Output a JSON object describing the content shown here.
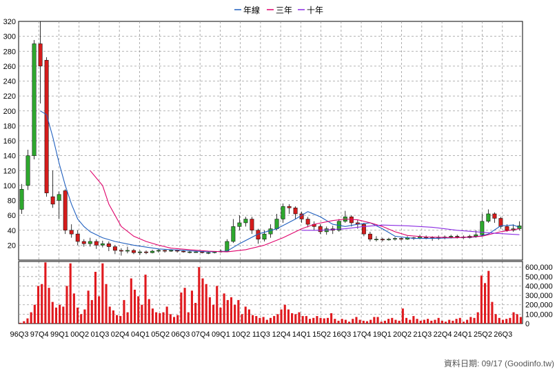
{
  "legend": [
    {
      "label": "年線",
      "color": "#1f5fbf"
    },
    {
      "label": "三年",
      "color": "#e0006a"
    },
    {
      "label": "十年",
      "color": "#8a2be2"
    }
  ],
  "source": "資料日期: 09/17  (Goodinfo.tw)",
  "colors": {
    "up": "#2ea82e",
    "down": "#d41c1c",
    "volume": "#e0191e",
    "grid": "#9a9a9a",
    "frame": "#000000"
  },
  "chart_data": [
    {
      "type": "candlestick",
      "title": "",
      "ylim": [
        0,
        320
      ],
      "yticks": [
        20,
        40,
        60,
        80,
        100,
        120,
        140,
        160,
        180,
        200,
        220,
        240,
        260,
        280,
        300,
        320
      ],
      "grid": true,
      "legend_position": "top-center",
      "x": [
        "96Q3",
        "97Q4",
        "99Q1",
        "00Q2",
        "01Q3",
        "02Q4",
        "04Q1",
        "05Q2",
        "06Q3",
        "07Q4",
        "09Q1",
        "10Q2",
        "11Q3",
        "12Q4",
        "14Q1",
        "15Q2",
        "16Q3",
        "17Q4",
        "19Q1",
        "20Q2",
        "21Q3",
        "22Q4",
        "24Q1",
        "25Q2",
        "26Q3"
      ],
      "candles": [
        [
          68,
          95,
          102,
          62
        ],
        [
          100,
          140,
          148,
          94
        ],
        [
          140,
          290,
          295,
          135
        ],
        [
          290,
          260,
          320,
          210
        ],
        [
          268,
          90,
          272,
          85
        ],
        [
          85,
          75,
          120,
          70
        ],
        [
          80,
          88,
          92,
          55
        ],
        [
          93,
          40,
          95,
          35
        ],
        [
          40,
          35,
          48,
          30
        ],
        [
          35,
          25,
          40,
          20
        ],
        [
          25,
          22,
          28,
          18
        ],
        [
          22,
          25,
          30,
          18
        ],
        [
          25,
          20,
          28,
          15
        ],
        [
          20,
          22,
          26,
          17
        ],
        [
          22,
          18,
          25,
          12
        ],
        [
          18,
          13,
          20,
          8
        ],
        [
          13,
          12,
          16,
          6
        ],
        [
          12,
          13,
          18,
          9
        ],
        [
          13,
          10,
          15,
          8
        ],
        [
          10,
          11,
          13,
          7
        ],
        [
          11,
          10,
          13,
          8
        ],
        [
          10,
          12,
          14,
          9
        ],
        [
          12,
          13,
          15,
          10
        ],
        [
          13,
          12,
          14,
          10
        ],
        [
          12,
          13,
          14,
          11
        ],
        [
          13,
          12,
          14,
          10
        ],
        [
          12,
          11,
          13,
          10
        ],
        [
          11,
          11,
          12,
          9
        ],
        [
          11,
          11,
          12,
          10
        ],
        [
          11,
          10,
          12,
          9
        ],
        [
          10,
          10,
          11,
          8
        ],
        [
          10,
          11,
          12,
          9
        ],
        [
          11,
          12,
          14,
          10
        ],
        [
          12,
          25,
          28,
          11
        ],
        [
          25,
          45,
          55,
          23
        ],
        [
          45,
          50,
          60,
          40
        ],
        [
          50,
          55,
          58,
          45
        ],
        [
          55,
          40,
          58,
          35
        ],
        [
          40,
          28,
          42,
          22
        ],
        [
          28,
          35,
          40,
          25
        ],
        [
          35,
          42,
          48,
          30
        ],
        [
          42,
          55,
          62,
          40
        ],
        [
          55,
          72,
          76,
          50
        ],
        [
          72,
          70,
          75,
          62
        ],
        [
          70,
          62,
          72,
          55
        ],
        [
          62,
          55,
          65,
          50
        ],
        [
          55,
          48,
          58,
          44
        ],
        [
          48,
          45,
          52,
          40
        ],
        [
          45,
          38,
          48,
          35
        ],
        [
          38,
          42,
          45,
          34
        ],
        [
          42,
          40,
          46,
          35
        ],
        [
          40,
          52,
          55,
          38
        ],
        [
          52,
          58,
          66,
          50
        ],
        [
          58,
          50,
          60,
          45
        ],
        [
          50,
          48,
          54,
          42
        ],
        [
          48,
          35,
          50,
          32
        ],
        [
          35,
          28,
          38,
          25
        ],
        [
          28,
          28,
          32,
          25
        ],
        [
          28,
          27,
          30,
          25
        ],
        [
          27,
          28,
          30,
          26
        ],
        [
          28,
          29,
          31,
          26
        ],
        [
          29,
          28,
          30,
          26
        ],
        [
          28,
          30,
          32,
          27
        ],
        [
          30,
          29,
          31,
          27
        ],
        [
          29,
          31,
          34,
          28
        ],
        [
          31,
          30,
          33,
          28
        ],
        [
          30,
          29,
          32,
          26
        ],
        [
          29,
          30,
          33,
          27
        ],
        [
          30,
          31,
          33,
          28
        ],
        [
          31,
          32,
          34,
          29
        ],
        [
          32,
          31,
          34,
          29
        ],
        [
          31,
          30,
          33,
          28
        ],
        [
          30,
          32,
          34,
          29
        ],
        [
          32,
          34,
          40,
          30
        ],
        [
          34,
          52,
          62,
          33
        ],
        [
          52,
          62,
          68,
          50
        ],
        [
          62,
          56,
          64,
          50
        ],
        [
          56,
          45,
          58,
          42
        ],
        [
          45,
          40,
          48,
          38
        ],
        [
          40,
          42,
          48,
          38
        ],
        [
          42,
          46,
          52,
          40
        ]
      ],
      "series": [
        {
          "name": "年線",
          "color": "#1f5fbf",
          "points": [
            [
              3,
              200
            ],
            [
              4,
              195
            ],
            [
              5,
              165
            ],
            [
              6,
              130
            ],
            [
              7,
              100
            ],
            [
              8,
              75
            ],
            [
              9,
              55
            ],
            [
              10,
              45
            ],
            [
              11,
              38
            ],
            [
              13,
              30
            ],
            [
              15,
              25
            ],
            [
              18,
              20
            ],
            [
              22,
              15
            ],
            [
              26,
              13
            ],
            [
              30,
              11
            ],
            [
              33,
              12
            ],
            [
              35,
              22
            ],
            [
              38,
              35
            ],
            [
              41,
              42
            ],
            [
              44,
              55
            ],
            [
              46,
              65
            ],
            [
              48,
              58
            ],
            [
              50,
              48
            ],
            [
              52,
              45
            ],
            [
              54,
              48
            ],
            [
              56,
              50
            ],
            [
              58,
              42
            ],
            [
              60,
              32
            ],
            [
              63,
              29
            ],
            [
              66,
              29
            ],
            [
              70,
              30
            ],
            [
              73,
              31
            ],
            [
              75,
              35
            ],
            [
              77,
              46
            ],
            [
              79,
              47
            ],
            [
              80,
              44
            ]
          ]
        },
        {
          "name": "三年",
          "color": "#e0006a",
          "points": [
            [
              11,
              120
            ],
            [
              13,
              100
            ],
            [
              14,
              75
            ],
            [
              16,
              45
            ],
            [
              18,
              32
            ],
            [
              20,
              25
            ],
            [
              22,
              20
            ],
            [
              24,
              16
            ],
            [
              27,
              14
            ],
            [
              30,
              12
            ],
            [
              33,
              11
            ],
            [
              36,
              14
            ],
            [
              39,
              20
            ],
            [
              42,
              30
            ],
            [
              45,
              42
            ],
            [
              47,
              48
            ],
            [
              50,
              53
            ],
            [
              52,
              55
            ],
            [
              54,
              54
            ],
            [
              56,
              50
            ],
            [
              58,
              45
            ],
            [
              60,
              38
            ],
            [
              62,
              33
            ],
            [
              65,
              31
            ],
            [
              70,
              30
            ],
            [
              74,
              32
            ],
            [
              77,
              38
            ],
            [
              80,
              42
            ]
          ]
        },
        {
          "name": "十年",
          "color": "#8a2be2",
          "points": [
            [
              45,
              40
            ],
            [
              48,
              40
            ],
            [
              52,
              42
            ],
            [
              55,
              45
            ],
            [
              58,
              47
            ],
            [
              62,
              46
            ],
            [
              66,
              44
            ],
            [
              70,
              40
            ],
            [
              73,
              38
            ],
            [
              76,
              36
            ],
            [
              80,
              34
            ]
          ]
        }
      ]
    },
    {
      "type": "bar",
      "title": "",
      "ylim": [
        0,
        660000
      ],
      "yticks": [
        0,
        100000,
        200000,
        300000,
        400000,
        500000,
        600000
      ],
      "ytick_labels": [
        "0",
        "100,000",
        "200,000",
        "300,000",
        "400,000",
        "500,000",
        "600,000"
      ],
      "values": [
        8000,
        25000,
        55000,
        120000,
        200000,
        400000,
        420000,
        650000,
        380000,
        230000,
        170000,
        200000,
        180000,
        400000,
        640000,
        320000,
        170000,
        100000,
        150000,
        350000,
        250000,
        550000,
        290000,
        640000,
        420000,
        180000,
        140000,
        90000,
        80000,
        250000,
        120000,
        480000,
        360000,
        290000,
        200000,
        520000,
        260000,
        160000,
        120000,
        110000,
        120000,
        180000,
        100000,
        70000,
        90000,
        330000,
        380000,
        120000,
        350000,
        220000,
        600000,
        480000,
        420000,
        280000,
        200000,
        400000,
        170000,
        320000,
        250000,
        280000,
        200000,
        250000,
        100000,
        180000,
        150000,
        90000,
        80000,
        60000,
        70000,
        40000,
        60000,
        80000,
        100000,
        150000,
        200000,
        150000,
        110000,
        100000,
        120000,
        80000,
        80000,
        50000,
        60000,
        80000,
        60000,
        55000,
        60000,
        110000,
        50000,
        30000,
        50000,
        40000,
        20000,
        50000,
        70000,
        40000,
        30000,
        25000,
        40000,
        70000,
        70000,
        20000,
        30000,
        50000,
        60000,
        40000,
        30000,
        160000,
        60000,
        40000,
        80000,
        50000,
        30000,
        40000,
        50000,
        30000,
        40000,
        60000,
        30000,
        20000,
        40000,
        30000,
        50000,
        60000,
        20000,
        40000,
        70000,
        60000,
        120000,
        510000,
        430000,
        560000,
        230000,
        100000,
        60000,
        40000,
        50000,
        60000,
        120000,
        100000,
        70000
      ]
    }
  ]
}
